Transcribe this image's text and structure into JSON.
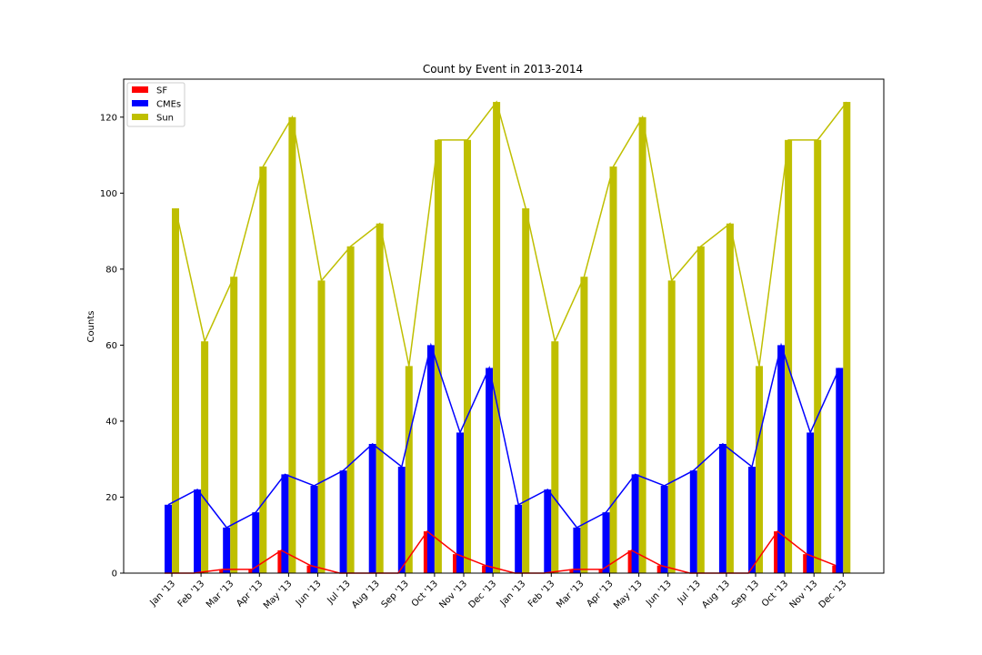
{
  "chart_data": {
    "type": "bar",
    "title": "Count by Event in 2013-2014",
    "xlabel": "",
    "ylabel": "Counts",
    "ylim": [
      0,
      130
    ],
    "yticks": [
      0,
      20,
      40,
      60,
      80,
      100,
      120
    ],
    "categories": [
      "Jan '13",
      "Feb '13",
      "Mar '13",
      "Apr '13",
      "May '13",
      "Jun '13",
      "Jul '13",
      "Aug '13",
      "Sep '13",
      "Oct '13",
      "Nov '13",
      "Dec '13",
      "Jan '13",
      "Feb '13",
      "Mar '13",
      "Apr '13",
      "May '13",
      "Jun '13",
      "Jul '13",
      "Aug '13",
      "Sep '13",
      "Oct '13",
      "Nov '13",
      "Dec '13"
    ],
    "series": [
      {
        "name": "SF",
        "color": "#ff0000",
        "values": [
          0,
          0,
          1,
          1,
          6,
          2,
          0,
          0,
          0,
          11,
          5,
          2,
          0,
          0,
          1,
          1,
          6,
          2,
          0,
          0,
          0,
          11,
          5,
          2
        ]
      },
      {
        "name": "CMEs",
        "color": "#0000ff",
        "values": [
          18,
          22,
          12,
          16,
          26,
          23,
          27,
          34,
          28,
          60,
          37,
          54,
          18,
          22,
          12,
          16,
          26,
          23,
          27,
          34,
          28,
          60,
          37,
          54
        ]
      },
      {
        "name": "Sun",
        "color": "#bfbf00",
        "values": [
          96,
          61,
          78,
          107,
          120,
          77,
          86,
          92,
          54.5,
          114,
          114,
          124,
          96,
          61,
          78,
          107,
          120,
          77,
          86,
          92,
          54.5,
          114,
          114,
          124
        ]
      }
    ],
    "legend": "top-left"
  }
}
